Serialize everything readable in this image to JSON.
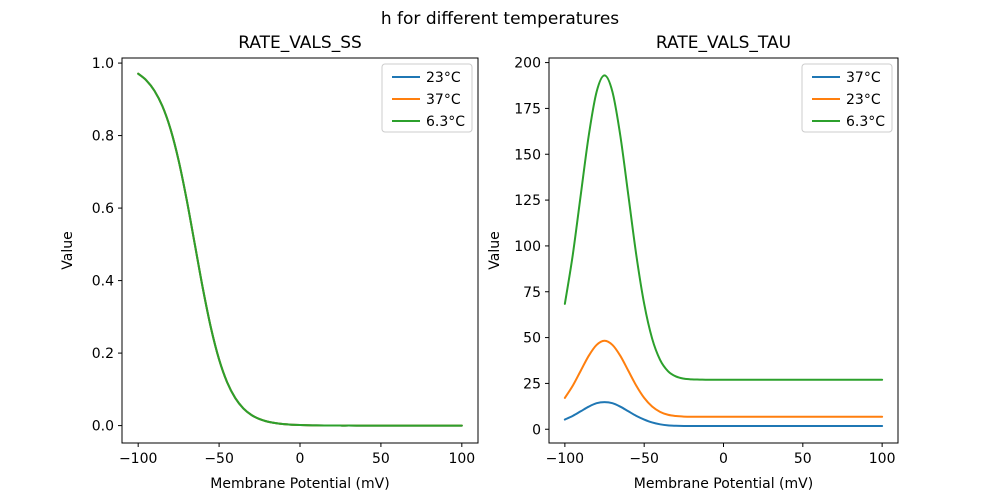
{
  "figure": {
    "suptitle": "h for different temperatures",
    "background": "#ffffff"
  },
  "colors": {
    "blue": "#1f77b4",
    "orange": "#ff7f0e",
    "green": "#2ca02c",
    "spine": "#000000",
    "legend_edge": "#cccccc",
    "text": "#000000"
  },
  "chart_data": [
    {
      "type": "line",
      "title": "RATE_VALS_SS",
      "xlabel": "Membrane Potential (mV)",
      "ylabel": "Value",
      "xlim": [
        -110,
        110
      ],
      "ylim": [
        -0.048,
        1.014
      ],
      "xticks": [
        -100,
        -50,
        0,
        50,
        100
      ],
      "xtick_labels": [
        "−100",
        "−50",
        "0",
        "50",
        "100"
      ],
      "yticks": [
        0.0,
        0.2,
        0.4,
        0.6,
        0.8,
        1.0
      ],
      "ytick_labels": [
        "0.0",
        "0.2",
        "0.4",
        "0.6",
        "0.8",
        "1.0"
      ],
      "grid": false,
      "legend_position": "upper right",
      "note": "all three temperature series overlap exactly; green (6.3°C) drawn on top",
      "x": [
        -100,
        -95,
        -90,
        -85,
        -80,
        -75,
        -70,
        -65,
        -60,
        -55,
        -50,
        -45,
        -40,
        -35,
        -30,
        -25,
        -20,
        -15,
        -10,
        -5,
        0,
        5,
        10,
        15,
        20,
        25,
        30,
        35,
        40,
        45,
        50,
        55,
        60,
        65,
        70,
        75,
        80,
        85,
        90,
        95,
        100
      ],
      "series": [
        {
          "name": "23°C",
          "color": "#1f77b4",
          "values": [
            0.9707,
            0.9526,
            0.9241,
            0.8808,
            0.8176,
            0.7311,
            0.6225,
            0.5,
            0.3775,
            0.2689,
            0.1824,
            0.1192,
            0.0759,
            0.0474,
            0.0293,
            0.018,
            0.011,
            0.0067,
            0.0041,
            0.0025,
            0.0015,
            0.0009,
            0.0006,
            0.0003,
            0.0002,
            0.0001,
            0.0001,
            0,
            0,
            0,
            0,
            0,
            0,
            0,
            0,
            0,
            0,
            0,
            0,
            0,
            0
          ]
        },
        {
          "name": "37°C",
          "color": "#ff7f0e",
          "values": [
            0.9707,
            0.9526,
            0.9241,
            0.8808,
            0.8176,
            0.7311,
            0.6225,
            0.5,
            0.3775,
            0.2689,
            0.1824,
            0.1192,
            0.0759,
            0.0474,
            0.0293,
            0.018,
            0.011,
            0.0067,
            0.0041,
            0.0025,
            0.0015,
            0.0009,
            0.0006,
            0.0003,
            0.0002,
            0.0001,
            0.0001,
            0,
            0,
            0,
            0,
            0,
            0,
            0,
            0,
            0,
            0,
            0,
            0,
            0,
            0
          ]
        },
        {
          "name": "6.3°C",
          "color": "#2ca02c",
          "values": [
            0.9707,
            0.9526,
            0.9241,
            0.8808,
            0.8176,
            0.7311,
            0.6225,
            0.5,
            0.3775,
            0.2689,
            0.1824,
            0.1192,
            0.0759,
            0.0474,
            0.0293,
            0.018,
            0.011,
            0.0067,
            0.0041,
            0.0025,
            0.0015,
            0.0009,
            0.0006,
            0.0003,
            0.0002,
            0.0001,
            0.0001,
            0,
            0,
            0,
            0,
            0,
            0,
            0,
            0,
            0,
            0,
            0,
            0,
            0,
            0
          ]
        }
      ]
    },
    {
      "type": "line",
      "title": "RATE_VALS_TAU",
      "xlabel": "Membrane Potential (mV)",
      "ylabel": "Value",
      "xlim": [
        -110,
        110
      ],
      "ylim": [
        -7.5,
        202.5
      ],
      "xticks": [
        -100,
        -50,
        0,
        50,
        100
      ],
      "xtick_labels": [
        "−100",
        "−50",
        "0",
        "50",
        "100"
      ],
      "yticks": [
        0,
        25,
        50,
        75,
        100,
        125,
        150,
        175,
        200
      ],
      "ytick_labels": [
        "0",
        "25",
        "50",
        "75",
        "100",
        "125",
        "150",
        "175",
        "200"
      ],
      "grid": false,
      "legend_position": "upper right",
      "note": "bell-shaped tau curves peaking near V=-75 mV; 6.3°C peak ≈193, 23°C peak ≈48, 37°C peak ≈15",
      "x": [
        -100,
        -95,
        -90,
        -85,
        -80,
        -75,
        -70,
        -65,
        -60,
        -55,
        -50,
        -45,
        -40,
        -35,
        -30,
        -25,
        -20,
        -15,
        -10,
        -5,
        0,
        5,
        10,
        15,
        20,
        25,
        30,
        35,
        40,
        45,
        50,
        55,
        60,
        65,
        70,
        75,
        80,
        85,
        90,
        95,
        100
      ],
      "series": [
        {
          "name": "37°C",
          "color": "#1f77b4",
          "values": [
            5.3,
            7.3,
            9.8,
            12.3,
            14.2,
            14.8,
            14.2,
            12.3,
            9.8,
            7.3,
            5.3,
            3.7,
            2.7,
            2.1,
            1.9,
            1.8,
            1.8,
            1.8,
            1.8,
            1.8,
            1.8,
            1.8,
            1.8,
            1.8,
            1.8,
            1.8,
            1.8,
            1.8,
            1.8,
            1.8,
            1.8,
            1.8,
            1.8,
            1.8,
            1.8,
            1.8,
            1.8,
            1.8,
            1.8,
            1.8,
            1.8
          ]
        },
        {
          "name": "23°C",
          "color": "#ff7f0e",
          "values": [
            17.1,
            23.8,
            31.9,
            40.0,
            46.0,
            48.3,
            46.0,
            40.0,
            31.9,
            23.8,
            17.1,
            12.4,
            9.5,
            7.9,
            7.2,
            6.9,
            6.8,
            6.8,
            6.8,
            6.8,
            6.8,
            6.8,
            6.8,
            6.8,
            6.8,
            6.8,
            6.8,
            6.8,
            6.8,
            6.8,
            6.8,
            6.8,
            6.8,
            6.8,
            6.8,
            6.8,
            6.8,
            6.8,
            6.8,
            6.8,
            6.8
          ]
        },
        {
          "name": "6.3°C",
          "color": "#2ca02c",
          "values": [
            68.4,
            95.2,
            127.7,
            159.9,
            184.0,
            193.0,
            184.0,
            159.9,
            127.7,
            95.2,
            68.4,
            49.5,
            37.9,
            31.7,
            28.8,
            27.6,
            27.2,
            27.1,
            27.0,
            27.0,
            27.0,
            27.0,
            27.0,
            27.0,
            27.0,
            27.0,
            27.0,
            27.0,
            27.0,
            27.0,
            27.0,
            27.0,
            27.0,
            27.0,
            27.0,
            27.0,
            27.0,
            27.0,
            27.0,
            27.0,
            27.0
          ]
        }
      ]
    }
  ]
}
